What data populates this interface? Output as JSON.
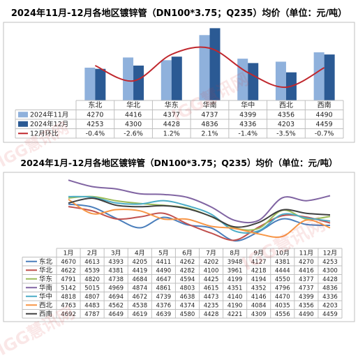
{
  "watermark": "IGG慧讯网",
  "colors": {
    "nov": "#8fb1dc",
    "dec": "#2b5a94",
    "mom": "#c0272d",
    "grid": "#d9d9d9"
  },
  "chart_data": [
    {
      "type": "bar",
      "title": "2024年11月-12月各地区镀锌管（DN100*3.75；Q235）均价（单位：元/吨）",
      "categories": [
        "东北",
        "华北",
        "华东",
        "华南",
        "华中",
        "西北",
        "西南"
      ],
      "series": [
        {
          "name": "2024年11月",
          "type": "bar",
          "color": "#8fb1dc",
          "values": [
            4270,
            4416,
            4377,
            4737,
            4399,
            4356,
            4490
          ]
        },
        {
          "name": "2024年12月",
          "type": "bar",
          "color": "#2b5a94",
          "values": [
            4253,
            4300,
            4428,
            4836,
            4336,
            4203,
            4459
          ]
        },
        {
          "name": "12月环比",
          "type": "line",
          "color": "#c0272d",
          "values": [
            -0.4,
            -2.6,
            1.2,
            2.1,
            -1.4,
            -3.5,
            -0.7
          ],
          "labels": [
            "-0.4%",
            "-2.6%",
            "1.2%",
            "2.1%",
            "-1.4%",
            "-3.5%",
            "-0.7%"
          ]
        }
      ],
      "ylim": [
        3800,
        4900
      ],
      "grid": false,
      "legend": "table-left"
    },
    {
      "type": "line",
      "title": "2024年1月-12月各地区镀锌管（DN100*3.75；Q235）均价（单位：元/吨）",
      "categories": [
        "1月",
        "2月",
        "3月",
        "4月",
        "5月",
        "6月",
        "7月",
        "8月",
        "9月",
        "10月",
        "11月",
        "12月"
      ],
      "series": [
        {
          "name": "东北",
          "color": "#4a7ebb",
          "values": [
            4670,
            4613,
            4393,
            4205,
            4411,
            4262,
            4202,
            3948,
            4127,
            4381,
            4270,
            4253
          ]
        },
        {
          "name": "华北",
          "color": "#c0504d",
          "values": [
            4622,
            4539,
            4381,
            4419,
            4490,
            4282,
            4100,
            3961,
            4218,
            4444,
            4416,
            4300
          ]
        },
        {
          "name": "华东",
          "color": "#9bbb59",
          "values": [
            4791,
            4820,
            4738,
            4684,
            4647,
            4594,
            4425,
            4199,
            4194,
            4550,
            4377,
            4428
          ]
        },
        {
          "name": "华南",
          "color": "#8064a2",
          "values": [
            5142,
            5015,
            4969,
            4874,
            4861,
            4803,
            4615,
            4351,
            4352,
            4796,
            4737,
            4836
          ]
        },
        {
          "name": "华中",
          "color": "#4bacc6",
          "values": [
            4818,
            4807,
            4694,
            4672,
            4739,
            4638,
            4473,
            4140,
            4146,
            4470,
            4399,
            4336
          ]
        },
        {
          "name": "西北",
          "color": "#f79646",
          "values": [
            4763,
            4483,
            4562,
            4538,
            4376,
            4374,
            4235,
            4190,
            4084,
            4035,
            4356,
            4203
          ]
        },
        {
          "name": "西南",
          "color": "#404040",
          "values": [
            4692,
            4787,
            4649,
            4619,
            4639,
            4580,
            4428,
            4221,
            4309,
            4556,
            4490,
            4459
          ]
        }
      ],
      "ylim": [
        3800,
        5200
      ],
      "grid": false,
      "legend": "table-left"
    }
  ]
}
